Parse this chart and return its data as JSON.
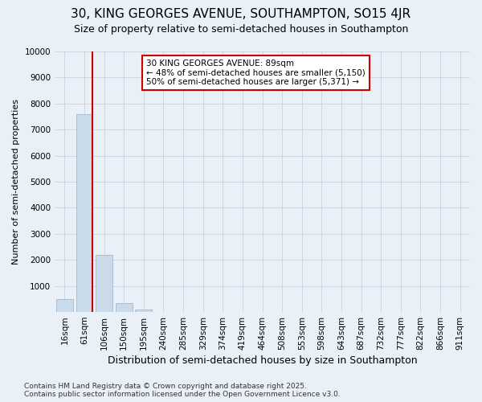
{
  "title": "30, KING GEORGES AVENUE, SOUTHAMPTON, SO15 4JR",
  "subtitle": "Size of property relative to semi-detached houses in Southampton",
  "xlabel": "Distribution of semi-detached houses by size in Southampton",
  "ylabel": "Number of semi-detached properties",
  "categories": [
    "16sqm",
    "61sqm",
    "106sqm",
    "150sqm",
    "195sqm",
    "240sqm",
    "285sqm",
    "329sqm",
    "374sqm",
    "419sqm",
    "464sqm",
    "508sqm",
    "553sqm",
    "598sqm",
    "643sqm",
    "687sqm",
    "732sqm",
    "777sqm",
    "822sqm",
    "866sqm",
    "911sqm"
  ],
  "values": [
    500,
    7600,
    2200,
    350,
    100,
    0,
    0,
    0,
    0,
    0,
    0,
    0,
    0,
    0,
    0,
    0,
    0,
    0,
    0,
    0,
    0
  ],
  "bar_color": "#c9daea",
  "bar_edge_color": "#aabfcf",
  "red_line_color": "#cc0000",
  "annotation_text": "30 KING GEORGES AVENUE: 89sqm\n← 48% of semi-detached houses are smaller (5,150)\n50% of semi-detached houses are larger (5,371) →",
  "annotation_box_color": "#ffffff",
  "annotation_box_edge": "#cc0000",
  "ylim": [
    0,
    10000
  ],
  "yticks": [
    0,
    1000,
    2000,
    3000,
    4000,
    5000,
    6000,
    7000,
    8000,
    9000,
    10000
  ],
  "background_color": "#eaf0f8",
  "plot_bg_color": "#eaf0f8",
  "grid_color": "#c0cdd8",
  "footer": "Contains HM Land Registry data © Crown copyright and database right 2025.\nContains public sector information licensed under the Open Government Licence v3.0.",
  "title_fontsize": 11,
  "subtitle_fontsize": 9,
  "xlabel_fontsize": 9,
  "ylabel_fontsize": 8,
  "tick_fontsize": 7.5,
  "footer_fontsize": 6.5,
  "annotation_fontsize": 7.5
}
